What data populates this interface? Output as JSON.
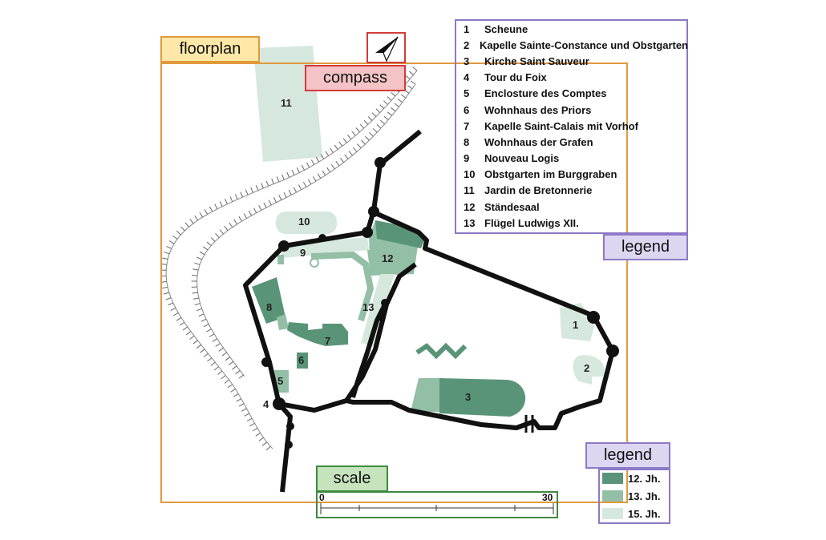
{
  "labels": {
    "floorplan": "floorplan",
    "compass": "compass",
    "legend_top": "legend",
    "legend_bottom": "legend",
    "scale": "scale"
  },
  "colors": {
    "floorplan_box": "#e09a3c",
    "floorplan_tag_fill": "#fde8a8",
    "compass_box": "#d23a3a",
    "compass_tag_fill": "#f3c3c5",
    "legend_box": "#8d79c7",
    "legend_tag_fill": "#ddd6f1",
    "scale_box": "#3f8a3f",
    "scale_tag_fill": "#c6e3bd",
    "period_12": "#5a9478",
    "period_13": "#93bfa6",
    "period_15": "#d6e8dd",
    "wall": "#111111"
  },
  "legend_items": [
    {
      "num": "1",
      "name": "Scheune"
    },
    {
      "num": "2",
      "name": "Kapelle Sainte-Constance und Obstgarten"
    },
    {
      "num": "3",
      "name": "Kirche Saint Sauveur"
    },
    {
      "num": "4",
      "name": "Tour du Foix"
    },
    {
      "num": "5",
      "name": "Enclosture des Comptes"
    },
    {
      "num": "6",
      "name": "Wohnhaus des Priors"
    },
    {
      "num": "7",
      "name": "Kapelle Saint-Calais mit Vorhof"
    },
    {
      "num": "8",
      "name": "Wohnhaus der Grafen"
    },
    {
      "num": "9",
      "name": "Nouveau Logis"
    },
    {
      "num": "10",
      "name": "Obstgarten im Burggraben"
    },
    {
      "num": "11",
      "name": "Jardin de Bretonnerie"
    },
    {
      "num": "12",
      "name": "Ständesaal"
    },
    {
      "num": "13",
      "name": "Flügel Ludwigs XII."
    }
  ],
  "period_legend": [
    {
      "label": "12. Jh.",
      "color": "#5a9478"
    },
    {
      "label": "13. Jh.",
      "color": "#93bfa6"
    },
    {
      "label": "15. Jh.",
      "color": "#d6e8dd"
    }
  ],
  "scale": {
    "min": "0",
    "max": "30"
  },
  "map_labels": {
    "n1": "1",
    "n2": "2",
    "n3": "3",
    "n4": "4",
    "n5": "5",
    "n6": "6",
    "n7": "7",
    "n8": "8",
    "n9": "9",
    "n10": "10",
    "n11": "11",
    "n12": "12",
    "n13": "13"
  },
  "compass_icon": "north-arrow-icon"
}
